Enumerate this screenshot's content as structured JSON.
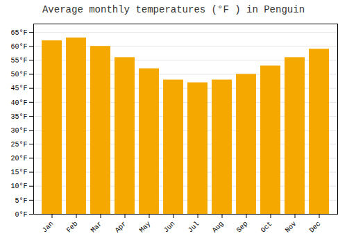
{
  "chart_data": {
    "type": "bar",
    "title": "Average monthly temperatures (°F ) in Penguin",
    "categories": [
      "Jan",
      "Feb",
      "Mar",
      "Apr",
      "May",
      "Jun",
      "Jul",
      "Aug",
      "Sep",
      "Oct",
      "Nov",
      "Dec"
    ],
    "values": [
      62,
      63,
      60,
      56,
      52,
      48,
      47,
      48,
      50,
      53,
      56,
      59
    ],
    "color": "#F5A800",
    "ylim": [
      0,
      68
    ],
    "yticks": [
      {
        "value": 0,
        "label": "0°F"
      },
      {
        "value": 5,
        "label": "5°F"
      },
      {
        "value": 10,
        "label": "10°F"
      },
      {
        "value": 15,
        "label": "15°F"
      },
      {
        "value": 20,
        "label": "20°F"
      },
      {
        "value": 25,
        "label": "25°F"
      },
      {
        "value": 30,
        "label": "30°F"
      },
      {
        "value": 35,
        "label": "35°F"
      },
      {
        "value": 40,
        "label": "40°F"
      },
      {
        "value": 45,
        "label": "45°F"
      },
      {
        "value": 50,
        "label": "50°F"
      },
      {
        "value": 55,
        "label": "55°F"
      },
      {
        "value": 60,
        "label": "60°F"
      },
      {
        "value": 65,
        "label": "65°F"
      }
    ],
    "grid": true
  }
}
